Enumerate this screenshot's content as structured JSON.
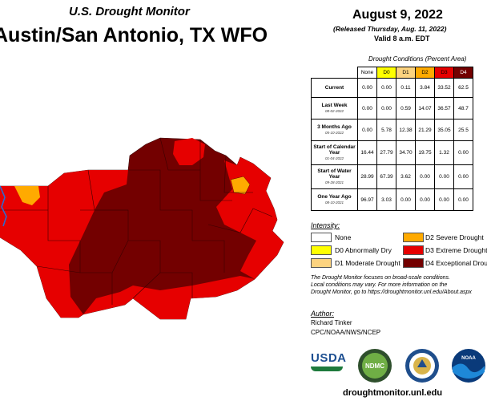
{
  "header": {
    "product": "U.S. Drought Monitor",
    "region": "Austin/San Antonio, TX WFO",
    "date": "August 9, 2022",
    "released": "(Released Thursday, Aug. 11, 2022)",
    "valid": "Valid 8 a.m. EDT"
  },
  "conditions": {
    "title": "Drought Conditions (Percent Area)",
    "columns": [
      "None",
      "D0",
      "D1",
      "D2",
      "D3",
      "D4"
    ],
    "column_colors": [
      "#ffffff",
      "#ffff00",
      "#fcd37f",
      "#ffaa00",
      "#e60000",
      "#730000"
    ],
    "rows": [
      {
        "label": "Current",
        "sub": "",
        "values": [
          "0.00",
          "0.00",
          "0.11",
          "3.84",
          "33.52",
          "62.5"
        ]
      },
      {
        "label": "Last Week",
        "sub": "08-02-2022",
        "values": [
          "0.00",
          "0.00",
          "0.59",
          "14.07",
          "36.57",
          "48.7"
        ]
      },
      {
        "label": "3 Months Ago",
        "sub": "05-10-2022",
        "values": [
          "0.00",
          "5.78",
          "12.38",
          "21.29",
          "35.05",
          "25.5"
        ]
      },
      {
        "label": "Start of Calendar Year",
        "sub": "01-04-2022",
        "values": [
          "16.44",
          "27.79",
          "34.70",
          "19.75",
          "1.32",
          "0.00"
        ]
      },
      {
        "label": "Start of Water Year",
        "sub": "09-28-2021",
        "values": [
          "28.99",
          "67.39",
          "3.62",
          "0.00",
          "0.00",
          "0.00"
        ]
      },
      {
        "label": "One Year Ago",
        "sub": "08-10-2021",
        "values": [
          "96.97",
          "3.03",
          "0.00",
          "0.00",
          "0.00",
          "0.00"
        ]
      }
    ]
  },
  "legend": {
    "title": "Intensity:",
    "items": [
      {
        "label": "None",
        "color": "#ffffff"
      },
      {
        "label": "D0 Abnormally Dry",
        "color": "#ffff00"
      },
      {
        "label": "D1 Moderate Drought",
        "color": "#fcd37f"
      },
      {
        "label": "D2 Severe Drought",
        "color": "#ffaa00"
      },
      {
        "label": "D3 Extreme Drought",
        "color": "#e60000"
      },
      {
        "label": "D4 Exceptional Drought",
        "color": "#730000"
      }
    ]
  },
  "note": {
    "line1": "The Drought Monitor focuses on broad-scale conditions.",
    "line2": "Local conditions may vary. For more information on the",
    "line3": "Drought Monitor, go to https://droughtmonitor.unl.edu/About.aspx"
  },
  "author": {
    "label": "Author:",
    "name": "Richard Tinker",
    "org": "CPC/NOAA/NWS/NCEP"
  },
  "logos": {
    "usda": "USDA",
    "ndmc": "NDMC",
    "noaa": "NOAA"
  },
  "footer": {
    "site": "droughtmonitor.unl.edu"
  }
}
